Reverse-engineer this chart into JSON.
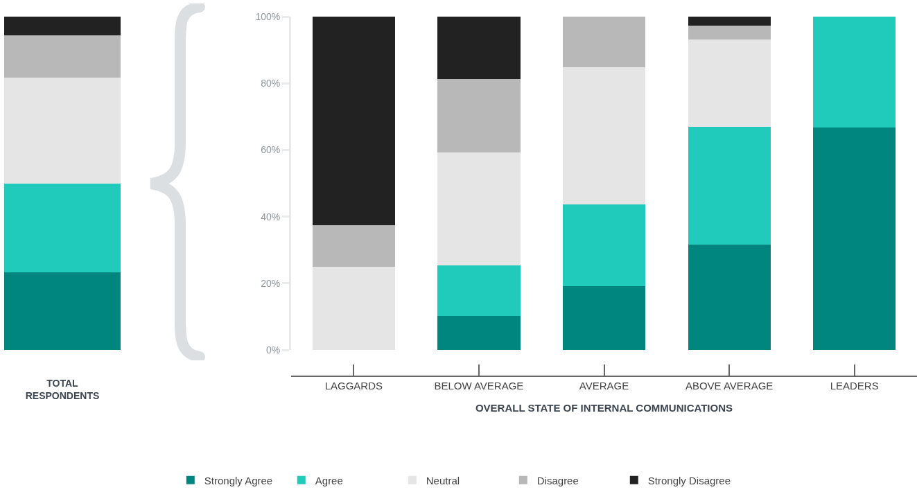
{
  "chart_data": [
    {
      "type": "bar",
      "stacked": true,
      "categories": [
        "TOTAL RESPONDENTS"
      ],
      "ylim": [
        0,
        100
      ],
      "tick_labels": "x",
      "grid": false,
      "legend": false,
      "series": [
        {
          "color": "#00857f",
          "values": [
            23.3
          ]
        },
        {
          "color": "#21cbbb",
          "values": [
            26.6
          ]
        },
        {
          "color": "#e5e5e5",
          "values": [
            31.8
          ]
        },
        {
          "color": "#b8b8b8",
          "values": [
            12.7
          ]
        },
        {
          "color": "#222222",
          "values": [
            5.6
          ]
        }
      ]
    },
    {
      "type": "bar",
      "stacked": true,
      "categories": [
        "LAGGARDS",
        "BELOW AVERAGE",
        "AVERAGE",
        "ABOVE AVERAGE",
        "LEADERS"
      ],
      "xlabel": "OVERALL STATE OF INTERNAL COMMUNICATIONS",
      "ylim": [
        0,
        100
      ],
      "yticks": [
        {
          "value": 0,
          "label": "0%"
        },
        {
          "value": 20,
          "label": "20%"
        },
        {
          "value": 40,
          "label": "40%"
        },
        {
          "value": 60,
          "label": "60%"
        },
        {
          "value": 80,
          "label": "80%"
        },
        {
          "value": 100,
          "label": "100%"
        }
      ],
      "grid": false,
      "legend": "bottom",
      "series": [
        {
          "name": "Strongly Agree",
          "color": "#00857f",
          "values": [
            0,
            10.2,
            19.1,
            31.6,
            66.7
          ]
        },
        {
          "name": "Agree",
          "color": "#21cbbb",
          "values": [
            0,
            15.2,
            24.5,
            35.3,
            33.3
          ]
        },
        {
          "name": "Neutral",
          "color": "#e5e5e5",
          "values": [
            25,
            33.9,
            41.2,
            26.2,
            0
          ]
        },
        {
          "name": "Disagree",
          "color": "#b8b8b8",
          "values": [
            12.5,
            22,
            15.2,
            4.2,
            0
          ]
        },
        {
          "name": "Strongly Disagree",
          "color": "#222222",
          "values": [
            62.5,
            18.7,
            0,
            2.7,
            0
          ]
        }
      ]
    }
  ]
}
